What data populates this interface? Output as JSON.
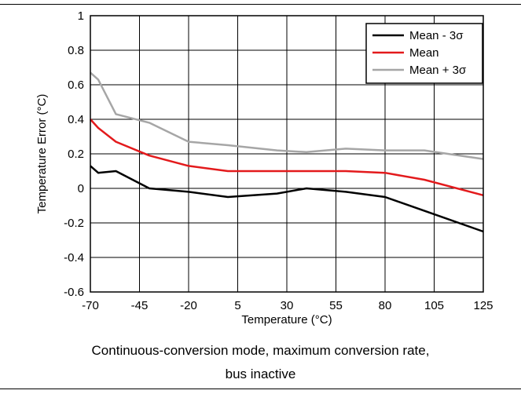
{
  "chart_data": {
    "type": "line",
    "xlabel": "Temperature (°C)",
    "ylabel": "Temperature Error (°C)",
    "xlim": [
      -70,
      125
    ],
    "ylim": [
      -0.6,
      1
    ],
    "x_ticks": [
      "-70",
      "-45",
      "-20",
      "5",
      "30",
      "55",
      "80",
      "105",
      "125"
    ],
    "y_ticks": [
      "1",
      "0.8",
      "0.6",
      "0.4",
      "0.2",
      "0",
      "-0.2",
      "-0.4",
      "-0.6"
    ],
    "grid": true,
    "legend_position": "top-right",
    "series": [
      {
        "name": "Mean - 3σ",
        "color": "#000000",
        "x": [
          -70,
          -66,
          -57,
          -40,
          -20,
          0,
          25,
          40,
          60,
          80,
          100,
          125
        ],
        "y": [
          0.13,
          0.09,
          0.1,
          0.0,
          -0.02,
          -0.05,
          -0.03,
          0.0,
          -0.02,
          -0.05,
          -0.13,
          -0.25
        ]
      },
      {
        "name": "Mean",
        "color": "#e31a1c",
        "x": [
          -70,
          -66,
          -57,
          -40,
          -20,
          0,
          25,
          40,
          60,
          80,
          100,
          125
        ],
        "y": [
          0.4,
          0.35,
          0.27,
          0.19,
          0.13,
          0.1,
          0.1,
          0.1,
          0.1,
          0.09,
          0.05,
          -0.04
        ]
      },
      {
        "name": "Mean + 3σ",
        "color": "#a6a6a6",
        "x": [
          -70,
          -66,
          -57,
          -40,
          -20,
          0,
          25,
          40,
          60,
          80,
          100,
          125
        ],
        "y": [
          0.67,
          0.63,
          0.43,
          0.38,
          0.27,
          0.25,
          0.22,
          0.21,
          0.23,
          0.22,
          0.22,
          0.17
        ]
      }
    ]
  },
  "caption": {
    "line1": "Continuous-conversion mode, maximum conversion rate,",
    "line2": "bus inactive"
  }
}
